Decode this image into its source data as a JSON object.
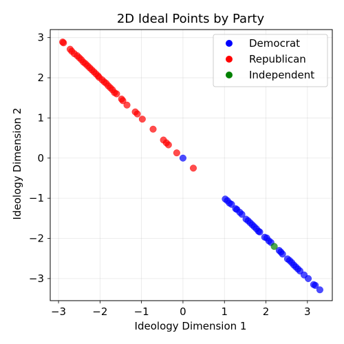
{
  "chart_data": {
    "type": "scatter",
    "title": "2D Ideal Points by Party",
    "xlabel": "Ideology Dimension 1",
    "ylabel": "Ideology Dimension 2",
    "xlim": [
      -3.2,
      3.6
    ],
    "ylim": [
      -3.55,
      3.2
    ],
    "xticks": [
      -3,
      -2,
      -1,
      0,
      1,
      2,
      3
    ],
    "yticks": [
      -3,
      -2,
      -1,
      0,
      1,
      2,
      3
    ],
    "grid": true,
    "legend_position": "top-right",
    "series": [
      {
        "name": "Democrat",
        "color": "#0000ff",
        "points": [
          [
            0.0,
            0.0
          ],
          [
            1.02,
            -1.02
          ],
          [
            1.07,
            -1.06
          ],
          [
            1.12,
            -1.12
          ],
          [
            1.17,
            -1.15
          ],
          [
            1.27,
            -1.26
          ],
          [
            1.3,
            -1.28
          ],
          [
            1.37,
            -1.35
          ],
          [
            1.42,
            -1.4
          ],
          [
            1.52,
            -1.52
          ],
          [
            1.57,
            -1.56
          ],
          [
            1.62,
            -1.61
          ],
          [
            1.67,
            -1.66
          ],
          [
            1.72,
            -1.71
          ],
          [
            1.77,
            -1.76
          ],
          [
            1.82,
            -1.82
          ],
          [
            1.85,
            -1.84
          ],
          [
            1.97,
            -1.97
          ],
          [
            2.02,
            -1.99
          ],
          [
            2.07,
            -2.06
          ],
          [
            2.12,
            -2.1
          ],
          [
            2.32,
            -2.3
          ],
          [
            2.36,
            -2.34
          ],
          [
            2.4,
            -2.39
          ],
          [
            2.52,
            -2.51
          ],
          [
            2.57,
            -2.55
          ],
          [
            2.62,
            -2.6
          ],
          [
            2.67,
            -2.66
          ],
          [
            2.72,
            -2.71
          ],
          [
            2.77,
            -2.76
          ],
          [
            2.82,
            -2.81
          ],
          [
            2.92,
            -2.91
          ],
          [
            3.02,
            -3.0
          ],
          [
            3.15,
            -3.15
          ],
          [
            3.19,
            -3.17
          ],
          [
            3.3,
            -3.28
          ]
        ]
      },
      {
        "name": "Republican",
        "color": "#ff0000",
        "points": [
          [
            -2.9,
            2.89
          ],
          [
            -2.88,
            2.87
          ],
          [
            -2.72,
            2.71
          ],
          [
            -2.68,
            2.66
          ],
          [
            -2.62,
            2.6
          ],
          [
            -2.55,
            2.55
          ],
          [
            -2.5,
            2.5
          ],
          [
            -2.45,
            2.45
          ],
          [
            -2.4,
            2.39
          ],
          [
            -2.35,
            2.35
          ],
          [
            -2.3,
            2.3
          ],
          [
            -2.25,
            2.25
          ],
          [
            -2.2,
            2.2
          ],
          [
            -2.15,
            2.15
          ],
          [
            -2.1,
            2.1
          ],
          [
            -2.05,
            2.05
          ],
          [
            -2.02,
            2.01
          ],
          [
            -1.95,
            1.95
          ],
          [
            -1.9,
            1.9
          ],
          [
            -1.85,
            1.86
          ],
          [
            -1.8,
            1.8
          ],
          [
            -1.75,
            1.75
          ],
          [
            -1.7,
            1.7
          ],
          [
            -1.65,
            1.63
          ],
          [
            -1.6,
            1.6
          ],
          [
            -1.48,
            1.47
          ],
          [
            -1.45,
            1.43
          ],
          [
            -1.35,
            1.32
          ],
          [
            -1.15,
            1.15
          ],
          [
            -1.1,
            1.1
          ],
          [
            -0.98,
            0.97
          ],
          [
            -0.72,
            0.72
          ],
          [
            -0.47,
            0.45
          ],
          [
            -0.4,
            0.38
          ],
          [
            -0.35,
            0.33
          ],
          [
            -0.15,
            0.13
          ],
          [
            0.25,
            -0.25
          ]
        ]
      },
      {
        "name": "Independent",
        "color": "#008000",
        "points": [
          [
            2.2,
            -2.2
          ]
        ]
      }
    ]
  }
}
